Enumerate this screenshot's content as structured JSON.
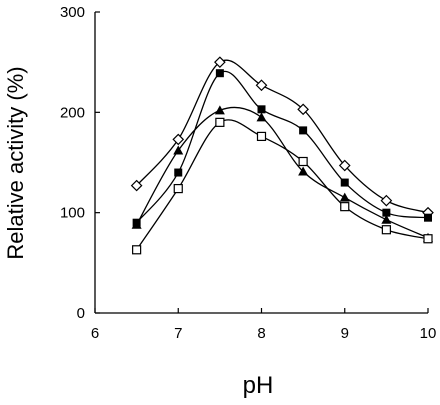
{
  "chart_data": {
    "type": "scatter",
    "xlabel": "pH",
    "ylabel": "Relative activity (%)",
    "xlim": [
      6,
      10
    ],
    "ylim": [
      0,
      300
    ],
    "xticks": [
      6,
      7,
      8,
      9,
      10
    ],
    "yticks": [
      0,
      100,
      200,
      300
    ],
    "xtick_labels": [
      "6",
      "7",
      "8",
      "9",
      "10"
    ],
    "ytick_labels": [
      "0",
      "100",
      "200",
      "300"
    ],
    "grid": false,
    "legend": "none",
    "series": [
      {
        "marker": "open-diamond",
        "x": [
          6.5,
          7.0,
          7.5,
          8.0,
          8.5,
          9.0,
          9.5,
          10.0
        ],
        "y": [
          127,
          173,
          250,
          227,
          203,
          147,
          112,
          100
        ]
      },
      {
        "marker": "filled-square",
        "x": [
          6.5,
          7.0,
          7.5,
          8.0,
          8.5,
          9.0,
          9.5,
          10.0
        ],
        "y": [
          90,
          140,
          239,
          203,
          182,
          130,
          100,
          95
        ]
      },
      {
        "marker": "filled-triangle",
        "x": [
          6.5,
          7.0,
          7.5,
          8.0,
          8.5,
          9.0,
          9.5,
          10.0
        ],
        "y": [
          88,
          162,
          202,
          195,
          141,
          115,
          93,
          75
        ]
      },
      {
        "marker": "open-square",
        "x": [
          6.5,
          7.0,
          7.5,
          8.0,
          8.5,
          9.0,
          9.5,
          10.0
        ],
        "y": [
          63,
          124,
          190,
          176,
          151,
          106,
          83,
          74
        ]
      }
    ]
  }
}
